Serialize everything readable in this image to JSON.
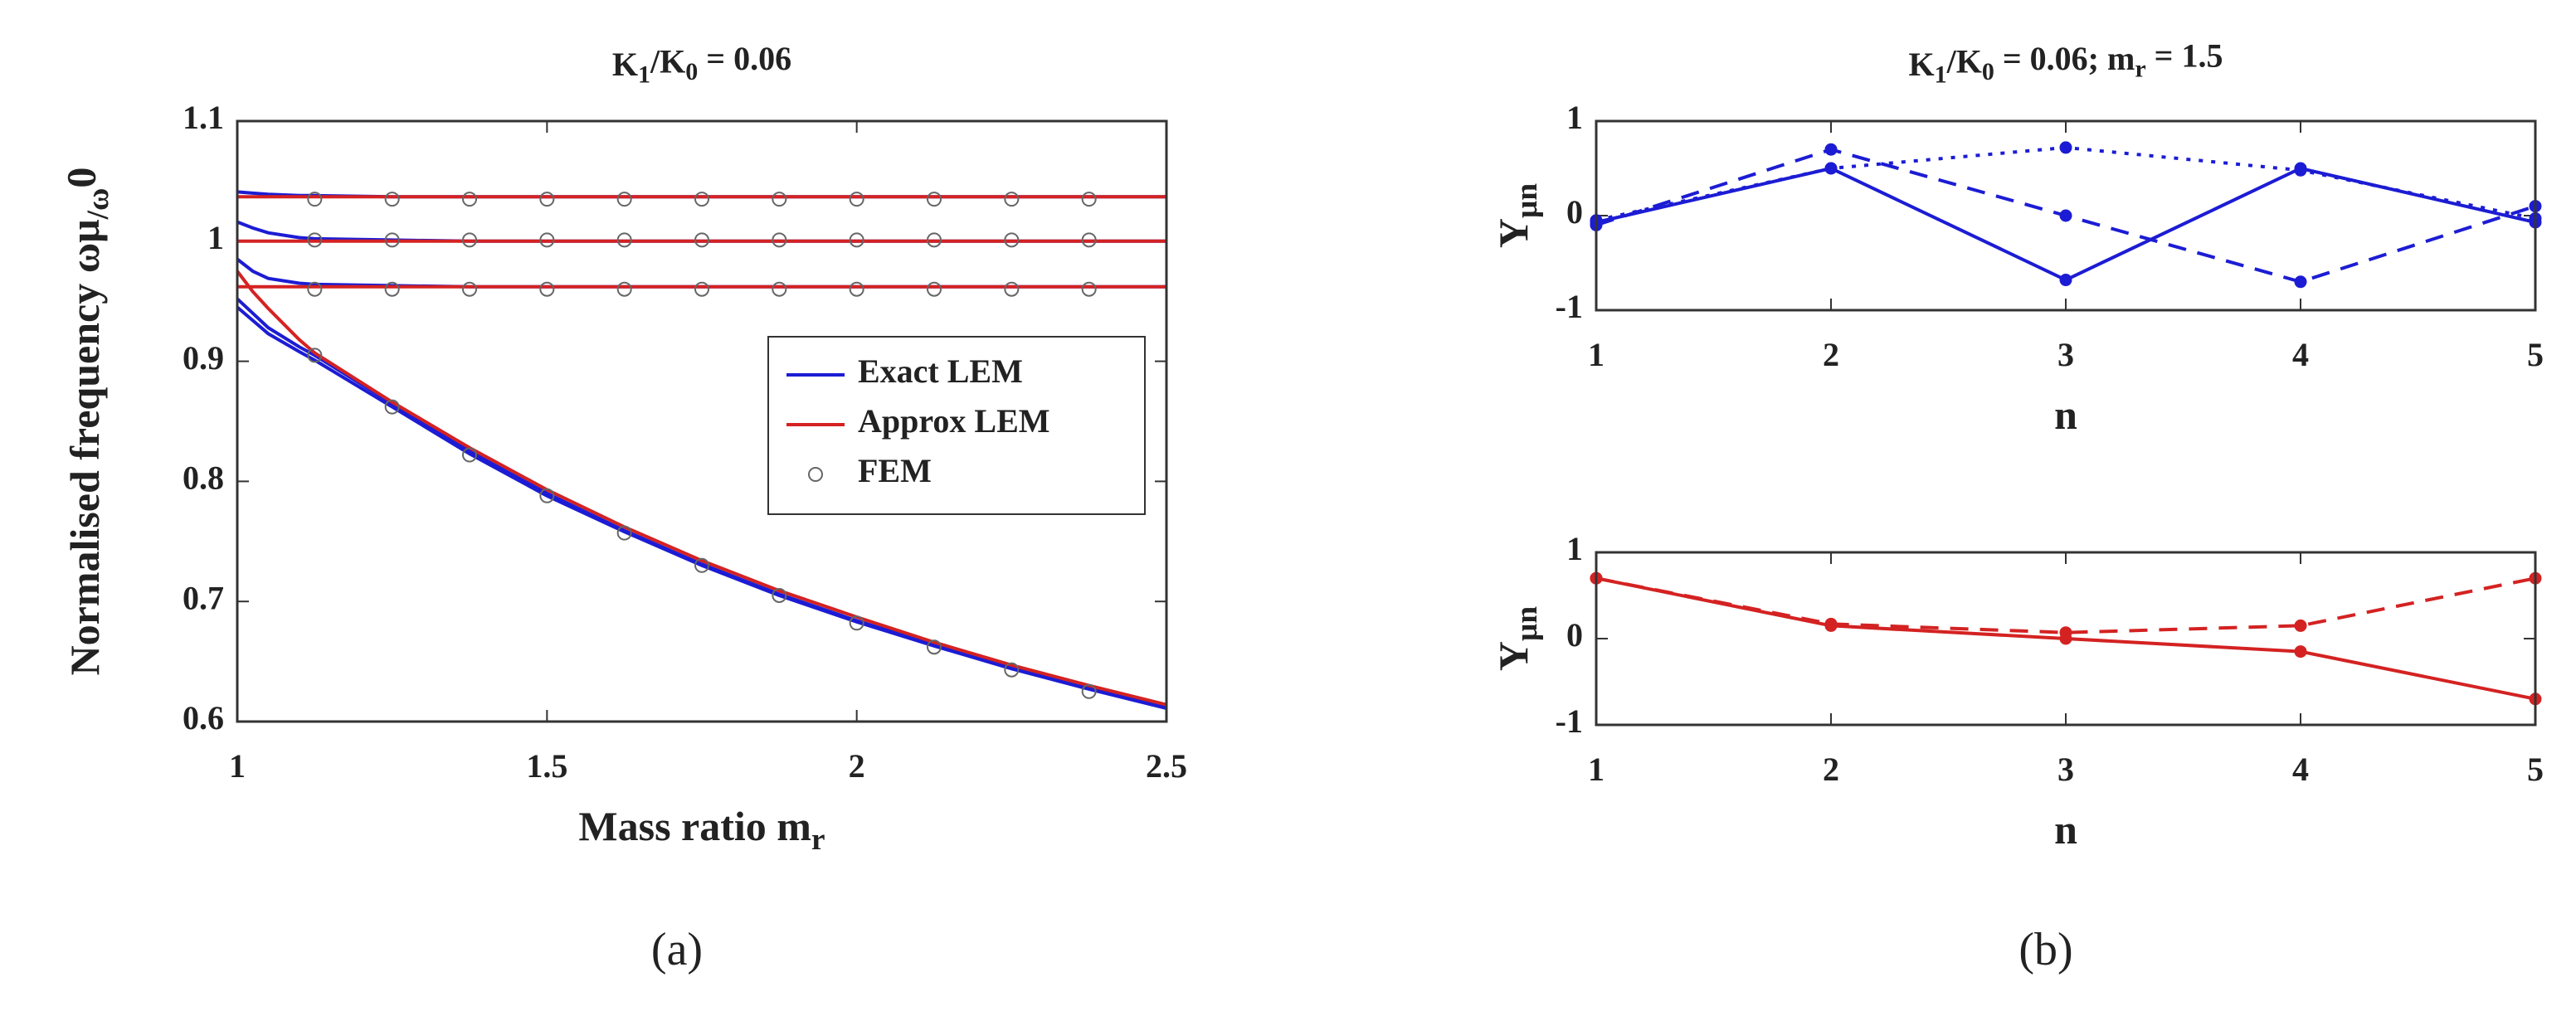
{
  "panel_labels": [
    "(a)",
    "(b)"
  ],
  "chart_data": [
    {
      "type": "line",
      "title": [
        "K",
        "1",
        "/K",
        "0",
        " = 0.06"
      ],
      "x_label": [
        "Mass ratio m",
        "r"
      ],
      "y_label": [
        "Normalised frequency ω",
        "μ",
        "/ω",
        "0"
      ],
      "xlim": [
        1,
        2.5
      ],
      "xticks": [
        1,
        1.5,
        2,
        2.5
      ],
      "ylim": [
        0.6,
        1.1
      ],
      "yticks": [
        0.6,
        0.7,
        0.8,
        0.9,
        1,
        1.1
      ],
      "legend": "right",
      "series": [
        {
          "name": "Exact LEM",
          "color": "#1c1cd4",
          "style": "solid",
          "x": [
            1,
            1.025,
            1.05,
            1.1,
            1.125,
            1.25,
            1.375,
            1.5,
            1.625,
            1.75,
            1.875,
            2,
            2.125,
            2.25,
            2.375,
            2.5
          ],
          "curves": [
            [
              1.041,
              1.04,
              1.039,
              1.038,
              1.038,
              1.037,
              1.037,
              1.037,
              1.037,
              1.037,
              1.037,
              1.037,
              1.037,
              1.037,
              1.037,
              1.037
            ],
            [
              1.016,
              1.011,
              1.007,
              1.003,
              1.002,
              1.001,
              1,
              1,
              1,
              1,
              1,
              1,
              1,
              1,
              1,
              1
            ],
            [
              0.985,
              0.975,
              0.969,
              0.965,
              0.964,
              0.963,
              0.962,
              0.962,
              0.962,
              0.962,
              0.962,
              0.962,
              0.962,
              0.962,
              0.962,
              0.962
            ],
            [
              0.952,
              0.94,
              0.928,
              0.912,
              0.905,
              0.865,
              0.825,
              0.79,
              0.759,
              0.731,
              0.706,
              0.684,
              0.664,
              0.645,
              0.628,
              0.612
            ],
            [
              0.945,
              0.934,
              0.923,
              0.908,
              0.901,
              0.862,
              0.823,
              0.788,
              0.758,
              0.73,
              0.705,
              0.683,
              0.663,
              0.644,
              0.627,
              0.611
            ]
          ]
        },
        {
          "name": "Approx LEM",
          "color": "#d42222",
          "style": "solid",
          "x": [
            1,
            1.025,
            1.05,
            1.1,
            1.125,
            1.25,
            1.375,
            1.5,
            1.625,
            1.75,
            1.875,
            2,
            2.125,
            2.25,
            2.375,
            2.5
          ],
          "curves": [
            [
              1.037,
              1.037,
              1.037,
              1.037,
              1.037,
              1.037,
              1.037,
              1.037,
              1.037,
              1.037,
              1.037,
              1.037,
              1.037,
              1.037,
              1.037,
              1.037
            ],
            [
              1,
              1,
              1,
              1,
              1,
              1,
              1,
              1,
              1,
              1,
              1,
              1,
              1,
              1,
              1,
              1
            ],
            [
              0.962,
              0.962,
              0.962,
              0.962,
              0.962,
              0.962,
              0.962,
              0.962,
              0.962,
              0.962,
              0.962,
              0.962,
              0.962,
              0.962,
              0.962,
              0.962
            ],
            [
              0.975,
              0.958,
              0.944,
              0.918,
              0.907,
              0.866,
              0.828,
              0.793,
              0.762,
              0.734,
              0.709,
              0.687,
              0.666,
              0.647,
              0.63,
              0.614
            ]
          ]
        },
        {
          "name": "FEM",
          "color": "#666666",
          "style": "none",
          "marker": "circle",
          "x": [
            1.125,
            1.25,
            1.375,
            1.5,
            1.625,
            1.75,
            1.875,
            2,
            2.125,
            2.25,
            2.375
          ],
          "curves": [
            [
              1.035,
              1.035,
              1.035,
              1.035,
              1.035,
              1.035,
              1.035,
              1.035,
              1.035,
              1.035,
              1.035
            ],
            [
              1.001,
              1.001,
              1.001,
              1.001,
              1.001,
              1.001,
              1.001,
              1.001,
              1.001,
              1.001,
              1.001
            ],
            [
              0.96,
              0.96,
              0.96,
              0.96,
              0.96,
              0.96,
              0.96,
              0.96,
              0.96,
              0.96,
              0.96
            ],
            [
              0.905,
              0.862,
              0.822,
              0.788,
              0.757,
              0.73,
              0.705,
              0.682,
              0.662,
              0.643,
              0.625
            ]
          ]
        }
      ]
    },
    {
      "type": "line",
      "title": [
        "K",
        "1",
        "/K",
        "0",
        " = 0.06; m",
        "r",
        " = 1.5"
      ],
      "x_label": [
        "n"
      ],
      "y_label": [
        "Y",
        "μn"
      ],
      "xlim": [
        1,
        5
      ],
      "xticks": [
        1,
        2,
        3,
        4,
        5
      ],
      "ylim": [
        -1,
        1
      ],
      "yticks": [
        -1,
        0,
        1
      ],
      "x": [
        1,
        2,
        3,
        4,
        5
      ],
      "series": [
        {
          "color": "#1c1cd4",
          "style": "solid",
          "marker": "dot",
          "values": [
            -0.07,
            0.5,
            -0.68,
            0.5,
            -0.07
          ]
        },
        {
          "color": "#1c1cd4",
          "style": "dashed",
          "marker": "dot",
          "values": [
            -0.1,
            0.7,
            0,
            -0.7,
            0.1
          ]
        },
        {
          "color": "#1c1cd4",
          "style": "dotted",
          "marker": "dot",
          "values": [
            -0.05,
            0.5,
            0.72,
            0.48,
            -0.03
          ]
        }
      ]
    },
    {
      "type": "line",
      "x_label": [
        "n"
      ],
      "y_label": [
        "Y",
        "μn"
      ],
      "xlim": [
        1,
        5
      ],
      "xticks": [
        1,
        2,
        3,
        4,
        5
      ],
      "ylim": [
        -1,
        1
      ],
      "yticks": [
        -1,
        0,
        1
      ],
      "x": [
        1,
        2,
        3,
        4,
        5
      ],
      "series": [
        {
          "color": "#d42222",
          "style": "solid",
          "marker": "dot",
          "values": [
            0.7,
            0.15,
            0,
            -0.15,
            -0.7
          ]
        },
        {
          "color": "#d42222",
          "style": "dashed",
          "marker": "dot",
          "values": [
            0.7,
            0.17,
            0.07,
            0.15,
            0.7
          ]
        }
      ]
    }
  ]
}
